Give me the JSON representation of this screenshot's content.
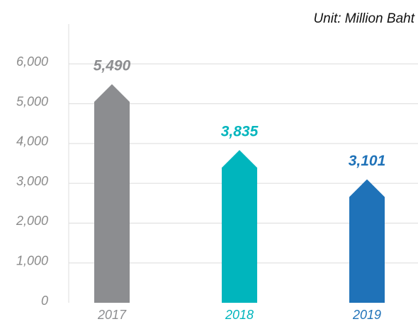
{
  "chart_data": {
    "type": "bar",
    "title": "Unit: Million Baht",
    "categories": [
      "2017",
      "2018",
      "2019"
    ],
    "values": [
      5490,
      3835,
      3101
    ],
    "value_labels": [
      "5,490",
      "3,835",
      "3,101"
    ],
    "colors": [
      "#8c8d90",
      "#00b5bd",
      "#1f72b8"
    ],
    "ylim": [
      0,
      7000
    ],
    "yticks": [
      0,
      {
        "value": 1000,
        "label": "1,000"
      },
      {
        "value": 2000,
        "label": "2,000"
      },
      {
        "value": 3000,
        "label": "3,000"
      },
      {
        "value": 4000,
        "label": "4,000"
      },
      {
        "value": 5000,
        "label": "5,000"
      },
      {
        "value": 6000,
        "label": "6,000"
      }
    ],
    "grid": true
  }
}
